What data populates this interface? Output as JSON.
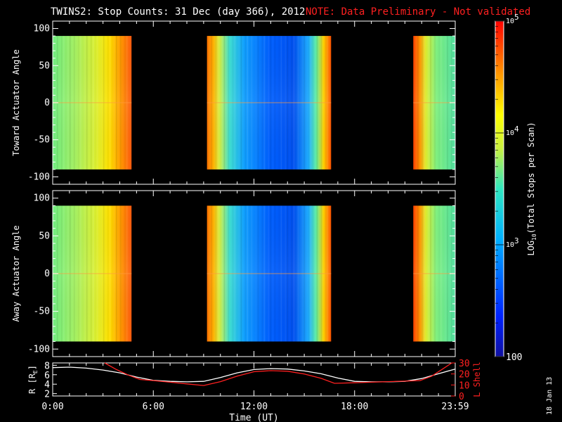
{
  "header": {
    "title": "TWINS2: Stop Counts: 31 Dec (day 366), 2012",
    "note": "NOTE: Data Preliminary - Not validated"
  },
  "side_date": "18 Jan 13",
  "colors": {
    "background": "#000000",
    "note_red": "#ff2020",
    "r_line": "#ffffff",
    "lshell_line": "#ff2020"
  },
  "chart_data": [
    {
      "type": "heatmap",
      "panel": "top",
      "ylabel": "Toward Actuator Angle",
      "yticks": [
        100,
        50,
        0,
        -50,
        -100
      ],
      "ylim": [
        -110,
        110
      ],
      "xlim": [
        0,
        24
      ],
      "data_ylim": [
        -90,
        90
      ],
      "segments": [
        {
          "start": 0.0,
          "end": 4.7,
          "profile": "green-orange"
        },
        {
          "start": 9.2,
          "end": 16.6,
          "profile": "orange-blue"
        },
        {
          "start": 21.5,
          "end": 24.0,
          "profile": "red-green"
        }
      ]
    },
    {
      "type": "heatmap",
      "panel": "middle",
      "ylabel": "Away Actuator Angle",
      "yticks": [
        100,
        50,
        0,
        -50,
        -100
      ],
      "ylim": [
        -110,
        110
      ],
      "xlim": [
        0,
        24
      ],
      "data_ylim": [
        -90,
        90
      ],
      "segments": [
        {
          "start": 0.0,
          "end": 4.7,
          "profile": "green-orange"
        },
        {
          "start": 9.2,
          "end": 16.6,
          "profile": "orange-blue"
        },
        {
          "start": 21.5,
          "end": 24.0,
          "profile": "red-green"
        }
      ]
    },
    {
      "type": "line",
      "panel": "bottom",
      "ylabel": "R [R",
      "ylabel_sub": "E",
      "ylabel_end": "]",
      "ylabel_right": "L Shell",
      "yticks_left": [
        2,
        4,
        6,
        8
      ],
      "yticks_right": [
        0,
        10,
        20,
        30
      ],
      "ylim_left": [
        1.5,
        8.5
      ],
      "ylim_right": [
        0,
        30
      ],
      "xlabel": "Time (UT)",
      "xticks": [
        "0:00",
        "6:00",
        "12:00",
        "18:00",
        "23:59"
      ],
      "xtick_values": [
        0,
        6,
        12,
        18,
        24
      ],
      "xlim": [
        0,
        24
      ],
      "series": [
        {
          "axis": "left",
          "color": "#ffffff",
          "x": [
            0,
            1,
            2,
            3,
            4,
            5,
            6,
            7,
            8,
            9,
            10,
            11,
            12,
            13,
            14,
            15,
            16,
            17,
            18,
            19,
            20,
            21,
            22,
            23,
            24
          ],
          "y": [
            7.5,
            7.6,
            7.4,
            7.0,
            6.4,
            5.5,
            4.8,
            4.6,
            4.5,
            4.6,
            5.4,
            6.4,
            7.1,
            7.3,
            7.2,
            6.8,
            6.2,
            5.3,
            4.6,
            4.5,
            4.5,
            4.6,
            5.2,
            6.2,
            7.2
          ]
        },
        {
          "axis": "right",
          "color": "#ff2020",
          "x": [
            3.1,
            3.8,
            4.5,
            5.2,
            6,
            7,
            8,
            9,
            10,
            11,
            12,
            13,
            14,
            15,
            16,
            16.8,
            18,
            19,
            20,
            21,
            21.9,
            22.6,
            23.2,
            23.8
          ],
          "y": [
            30,
            24,
            19,
            15,
            14,
            12.5,
            11,
            9.5,
            13,
            18,
            22,
            23,
            22.5,
            20,
            16,
            11.5,
            12,
            12.5,
            13,
            13.5,
            14,
            18,
            24,
            30
          ]
        }
      ]
    },
    {
      "type": "heatmap",
      "panel": "colorbar",
      "label": "LOG",
      "label_sub": "10",
      "label_end": "(Total Stops per Scan)",
      "ticks": [
        {
          "base": "10",
          "exp": "5"
        },
        {
          "base": "10",
          "exp": "4"
        },
        {
          "base": "10",
          "exp": "3"
        },
        {
          "base": "100",
          "exp": ""
        }
      ],
      "tick_values": [
        100000,
        10000,
        1000,
        100
      ],
      "range": [
        100,
        100000
      ]
    }
  ]
}
